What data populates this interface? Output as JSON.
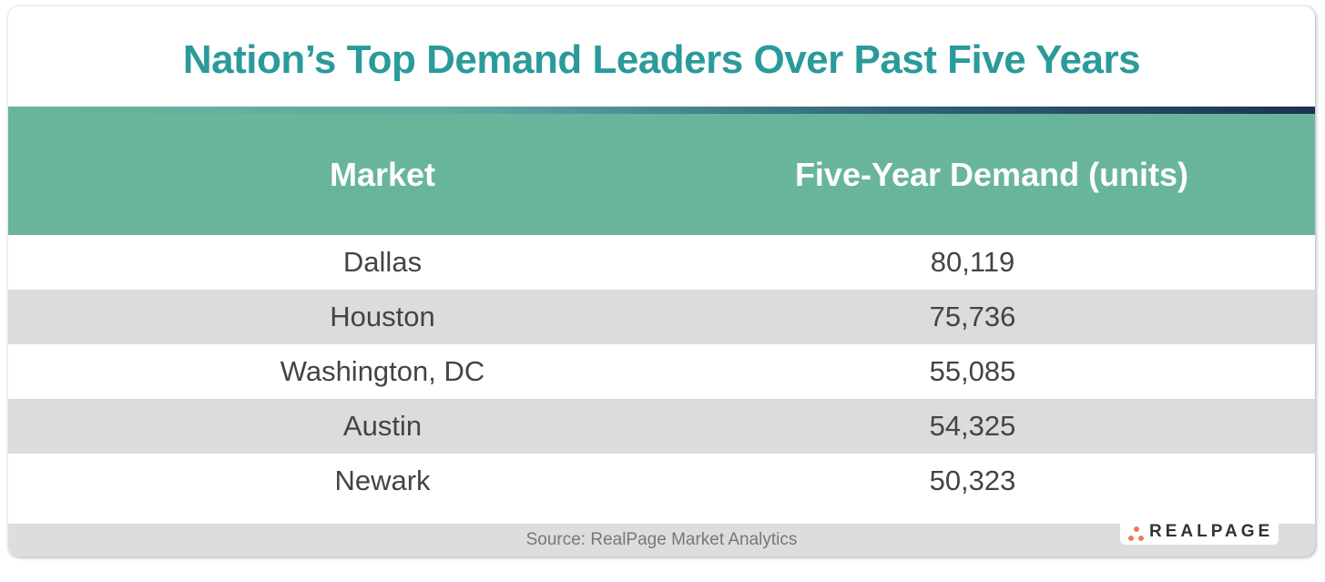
{
  "title": "Nation’s Top Demand Leaders Over Past Five Years",
  "headers": {
    "market": "Market",
    "demand": "Five-Year Demand (units)"
  },
  "rows": [
    {
      "market": "Dallas",
      "demand": "80,119"
    },
    {
      "market": "Houston",
      "demand": "75,736"
    },
    {
      "market": "Washington, DC",
      "demand": "55,085"
    },
    {
      "market": "Austin",
      "demand": "54,325"
    },
    {
      "market": "Newark",
      "demand": "50,323"
    }
  ],
  "source": "Source: RealPage Market Analytics",
  "logo": "REALPAGE",
  "colors": {
    "title": "#2b9a9b",
    "header": "#68b59c",
    "alt_row": "#dcdcdc",
    "logo_dots": "#ee7a52"
  }
}
